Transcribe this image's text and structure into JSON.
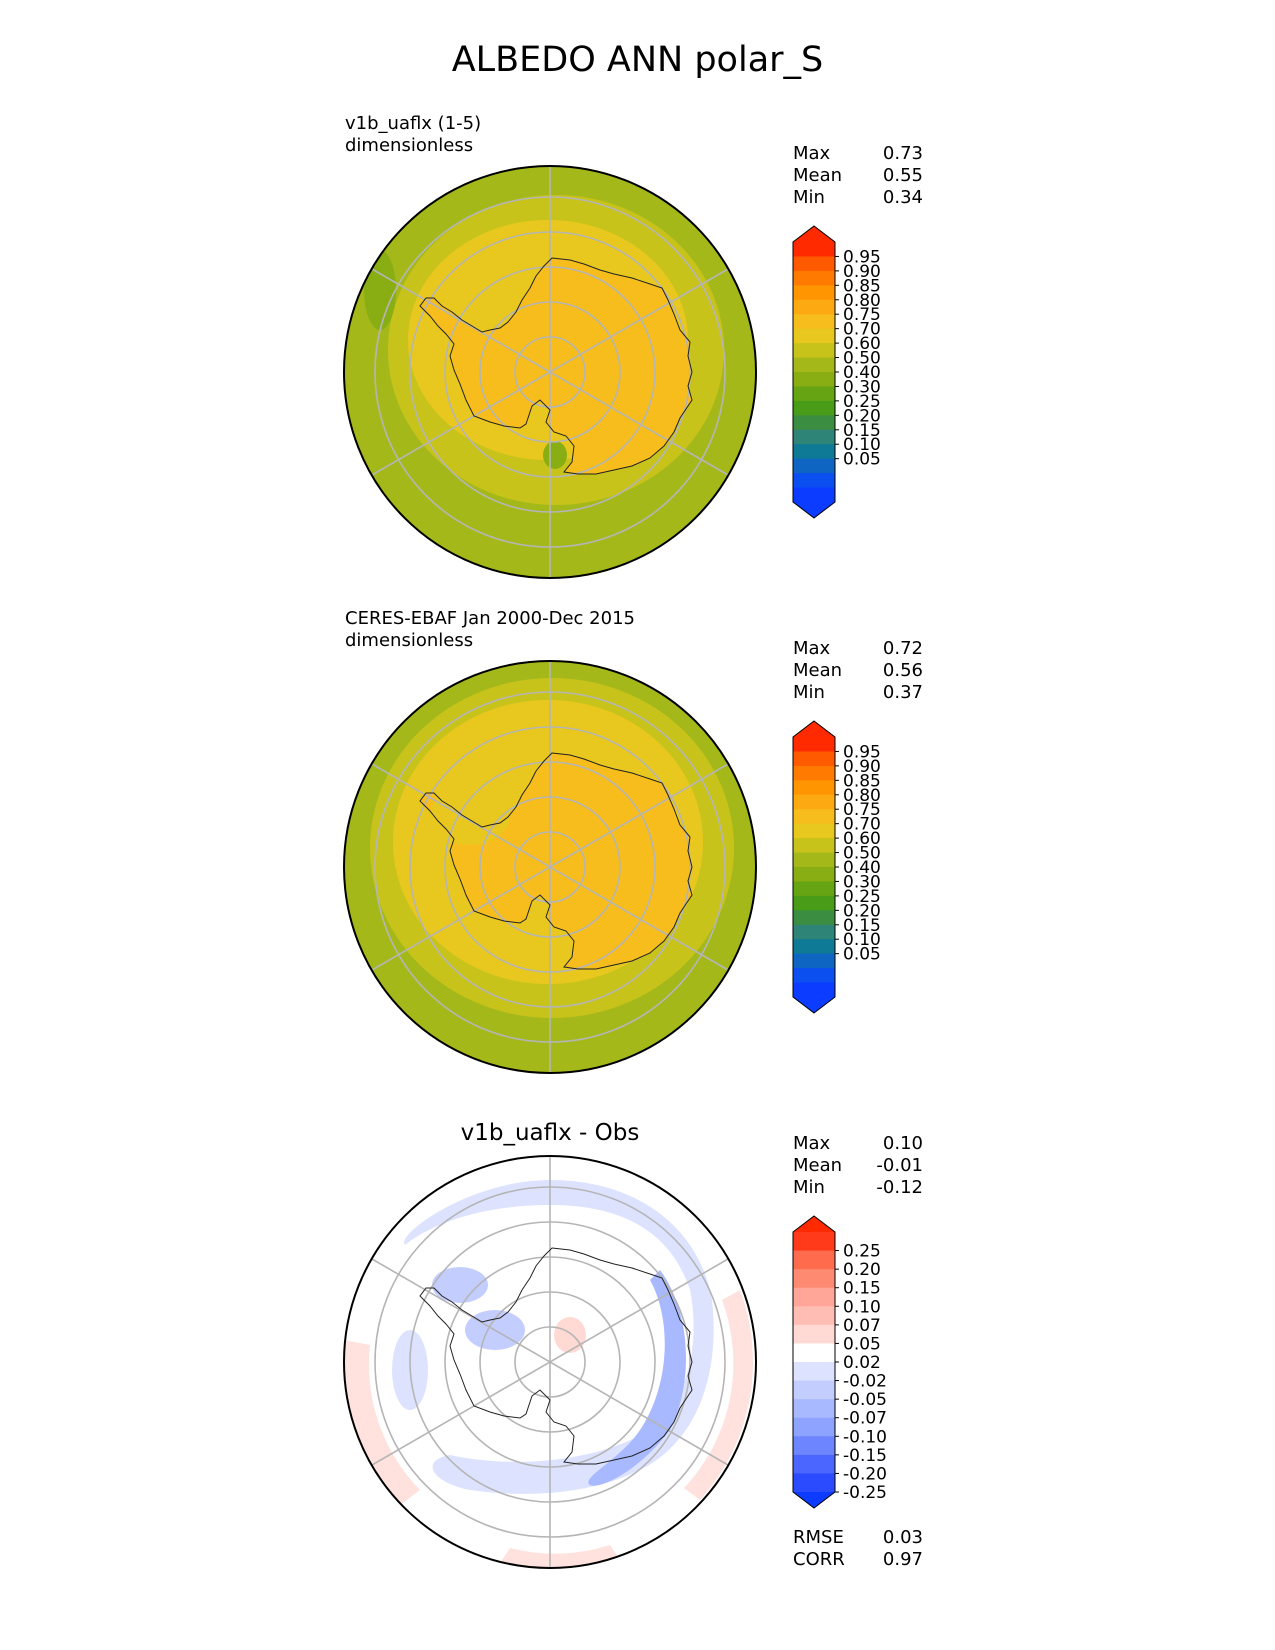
{
  "figure": {
    "title": "ALBEDO ANN polar_S"
  },
  "panels": [
    {
      "label_line1": "v1b_uaflx (1-5)",
      "label_line2": "dimensionless",
      "stats": [
        {
          "name": "Max",
          "value": "0.73"
        },
        {
          "name": "Mean",
          "value": "0.55"
        },
        {
          "name": "Min",
          "value": "0.34"
        }
      ],
      "colorbar": {
        "ticks": [
          "0.95",
          "0.90",
          "0.85",
          "0.80",
          "0.75",
          "0.70",
          "0.60",
          "0.50",
          "0.40",
          "0.30",
          "0.25",
          "0.20",
          "0.15",
          "0.10",
          "0.05"
        ],
        "colors": [
          "#ff2a00",
          "#ff5a00",
          "#ff7a00",
          "#ff9500",
          "#fdaa12",
          "#f6bd1d",
          "#e8c81f",
          "#c8c31b",
          "#a4b919",
          "#88ae14",
          "#66a413",
          "#489c17",
          "#3b8d41",
          "#2e8577",
          "#0e7a96",
          "#0f66c2",
          "#0b4ff0",
          "#0b3cff"
        ],
        "over": "#ff2a00",
        "under": "#0b3cff"
      }
    },
    {
      "label_line1": "CERES-EBAF Jan 2000-Dec 2015",
      "label_line2": "dimensionless",
      "stats": [
        {
          "name": "Max",
          "value": "0.72"
        },
        {
          "name": "Mean",
          "value": "0.56"
        },
        {
          "name": "Min",
          "value": "0.37"
        }
      ],
      "colorbar": {
        "ticks": [
          "0.95",
          "0.90",
          "0.85",
          "0.80",
          "0.75",
          "0.70",
          "0.60",
          "0.50",
          "0.40",
          "0.30",
          "0.25",
          "0.20",
          "0.15",
          "0.10",
          "0.05"
        ],
        "colors": [
          "#ff2a00",
          "#ff5a00",
          "#ff7a00",
          "#ff9500",
          "#fdaa12",
          "#f6bd1d",
          "#e8c81f",
          "#c8c31b",
          "#a4b919",
          "#88ae14",
          "#66a413",
          "#489c17",
          "#3b8d41",
          "#2e8577",
          "#0e7a96",
          "#0f66c2",
          "#0b4ff0",
          "#0b3cff"
        ],
        "over": "#ff2a00",
        "under": "#0b3cff"
      }
    },
    {
      "title": "v1b_uaflx - Obs",
      "stats": [
        {
          "name": "Max",
          "value": "0.10"
        },
        {
          "name": "Mean",
          "value": "-0.01"
        },
        {
          "name": "Min",
          "value": "-0.12"
        }
      ],
      "extra_stats": [
        {
          "name": "RMSE",
          "value": "0.03"
        },
        {
          "name": "CORR",
          "value": "0.97"
        }
      ],
      "colorbar": {
        "ticks": [
          "0.25",
          "0.20",
          "0.15",
          "0.10",
          "0.07",
          "0.05",
          "0.02",
          "-0.02",
          "-0.05",
          "-0.07",
          "-0.10",
          "-0.15",
          "-0.20",
          "-0.25"
        ],
        "colors": [
          "#ff3a1a",
          "#ff6b4d",
          "#ff8a72",
          "#ffa698",
          "#ffbdb3",
          "#ffd9d4",
          "#ffffff",
          "#dde3ff",
          "#c3ceff",
          "#a9b9ff",
          "#8ea3ff",
          "#6d86ff",
          "#4a66ff",
          "#2a4bff"
        ],
        "over": "#ff2a00",
        "under": "#0b3cff"
      }
    }
  ]
}
